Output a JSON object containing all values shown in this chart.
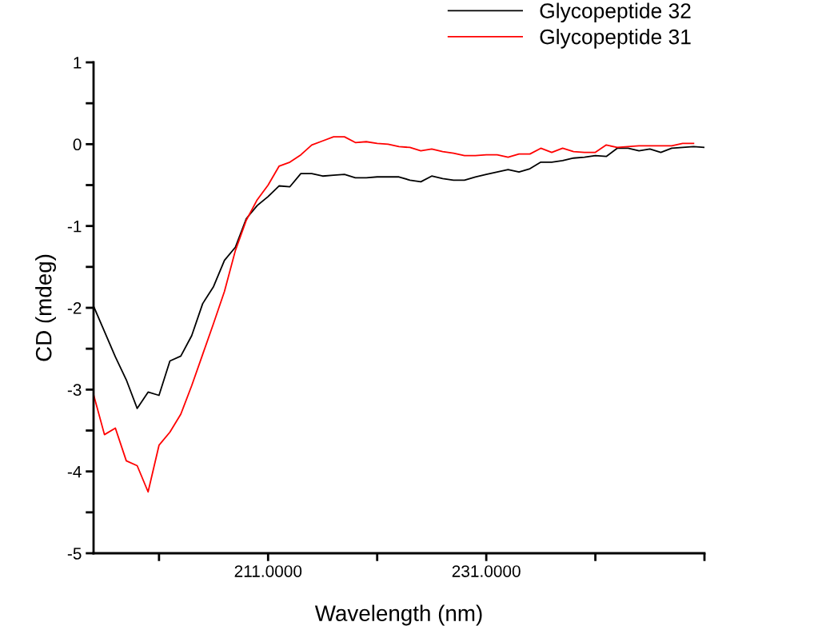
{
  "chart_data": {
    "type": "line",
    "xlabel": "Wavelength (nm)",
    "ylabel": "CD (mdeg)",
    "xlim": [
      195,
      251
    ],
    "ylim": [
      -5,
      1
    ],
    "xticks": [
      {
        "value": 201,
        "label": null
      },
      {
        "value": 211,
        "label": "211.0000"
      },
      {
        "value": 221,
        "label": null
      },
      {
        "value": 231,
        "label": "231.0000"
      },
      {
        "value": 241,
        "label": null
      },
      {
        "value": 251,
        "label": null
      }
    ],
    "yticks": [
      -5,
      {
        "value": -4.5,
        "label": null
      },
      -4,
      {
        "value": -3.5,
        "label": null
      },
      -3,
      {
        "value": -2.5,
        "label": null
      },
      -2,
      {
        "value": -1.5,
        "label": null
      },
      -1,
      {
        "value": -0.5,
        "label": null
      },
      0,
      {
        "value": 0.5,
        "label": null
      },
      1
    ],
    "x": [
      195,
      196,
      197,
      198,
      199,
      200,
      201,
      202,
      203,
      204,
      205,
      206,
      207,
      208,
      209,
      210,
      211,
      212,
      213,
      214,
      215,
      216,
      217,
      218,
      219,
      220,
      221,
      222,
      223,
      224,
      225,
      226,
      227,
      228,
      229,
      230,
      231,
      232,
      233,
      234,
      235,
      236,
      237,
      238,
      239,
      240,
      241,
      242,
      243,
      244,
      245,
      246,
      247,
      248,
      249,
      250,
      251
    ],
    "legend": "top right",
    "grid": false,
    "marker": "none",
    "line_style": "solid",
    "series": [
      {
        "name": "Glycopeptide 32",
        "color": "#000000",
        "values": [
          -1.98,
          -2.29,
          -2.6,
          -2.88,
          -3.23,
          -3.03,
          -3.07,
          -2.65,
          -2.59,
          -2.34,
          -1.95,
          -1.74,
          -1.42,
          -1.26,
          -0.91,
          -0.75,
          -0.64,
          -0.51,
          -0.52,
          -0.36,
          -0.36,
          -0.39,
          -0.38,
          -0.37,
          -0.41,
          -0.41,
          -0.4,
          -0.4,
          -0.4,
          -0.44,
          -0.46,
          -0.39,
          -0.42,
          -0.44,
          -0.44,
          -0.4,
          -0.37,
          -0.34,
          -0.31,
          -0.34,
          -0.3,
          -0.22,
          -0.22,
          -0.2,
          -0.17,
          -0.16,
          -0.14,
          -0.15,
          -0.05,
          -0.05,
          -0.08,
          -0.06,
          -0.1,
          -0.05,
          -0.04,
          -0.03,
          -0.04
        ]
      },
      {
        "name": "Glycopeptide 31",
        "color": "#ff0000",
        "values": [
          -3.06,
          -3.55,
          -3.47,
          -3.87,
          -3.93,
          -4.25,
          -3.68,
          -3.52,
          -3.3,
          -2.95,
          -2.57,
          -2.19,
          -1.8,
          -1.3,
          -0.93,
          -0.68,
          -0.5,
          -0.27,
          -0.22,
          -0.13,
          -0.01,
          0.04,
          0.09,
          0.09,
          0.02,
          0.03,
          0.01,
          0.0,
          -0.03,
          -0.04,
          -0.08,
          -0.06,
          -0.09,
          -0.11,
          -0.14,
          -0.14,
          -0.13,
          -0.13,
          -0.16,
          -0.12,
          -0.12,
          -0.05,
          -0.1,
          -0.05,
          -0.09,
          -0.1,
          -0.1,
          -0.01,
          -0.04,
          -0.03,
          -0.02,
          -0.02,
          -0.02,
          -0.02,
          0.01,
          0.01,
          null
        ]
      }
    ]
  }
}
